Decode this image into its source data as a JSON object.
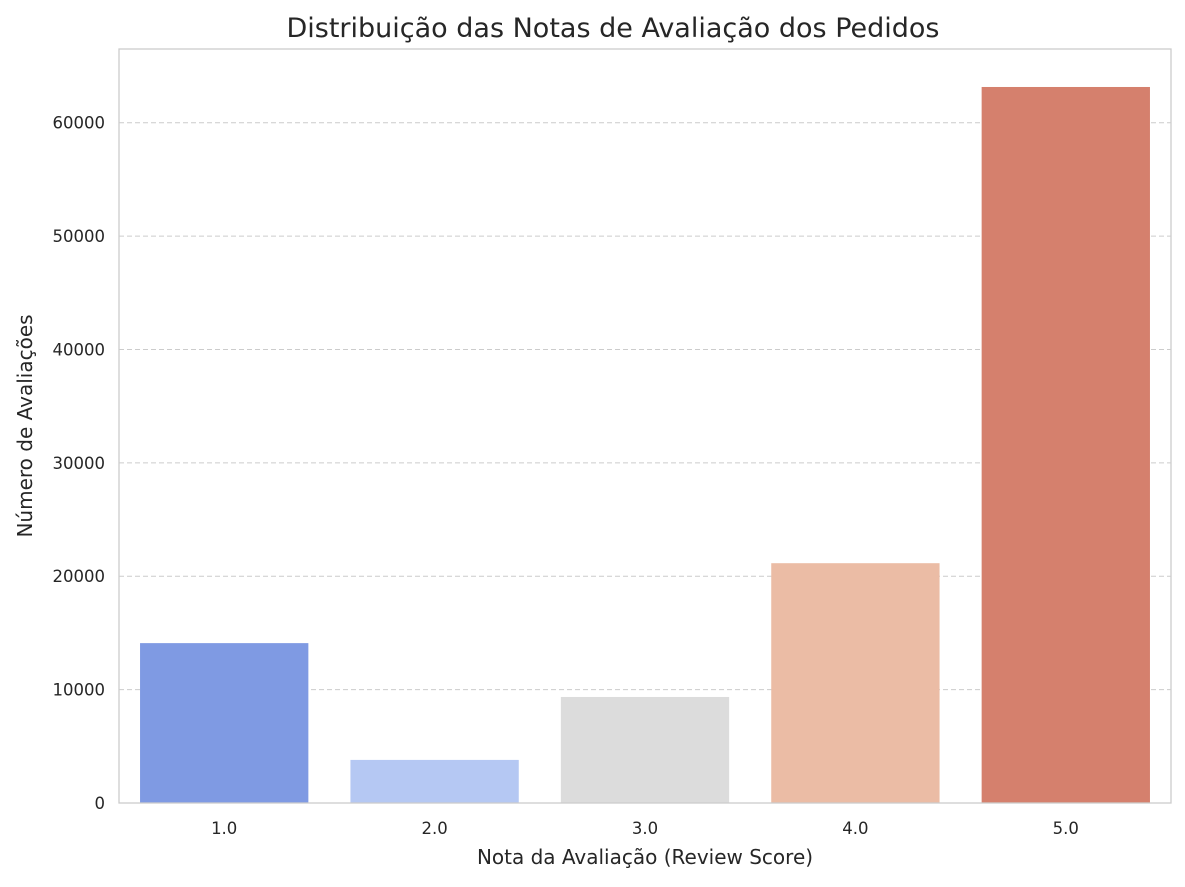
{
  "chart_data": {
    "type": "bar",
    "title": "Distribuição das Notas de Avaliação dos Pedidos",
    "xlabel": "Nota da Avaliação (Review Score)",
    "ylabel": "Número de Avaliações",
    "categories": [
      "1.0",
      "2.0",
      "3.0",
      "4.0",
      "5.0"
    ],
    "values": [
      14100,
      3800,
      9350,
      21150,
      63150
    ],
    "colors": [
      "#7f9ae3",
      "#b5c8f3",
      "#dcdcdc",
      "#ebbca5",
      "#d5806d"
    ],
    "ylim": [
      0,
      66500
    ],
    "yticks": [
      0,
      10000,
      20000,
      30000,
      40000,
      50000,
      60000
    ],
    "ytick_labels": [
      "0",
      "10000",
      "20000",
      "30000",
      "40000",
      "50000",
      "60000"
    ],
    "grid": "horizontal-dashed",
    "legend": "none"
  }
}
